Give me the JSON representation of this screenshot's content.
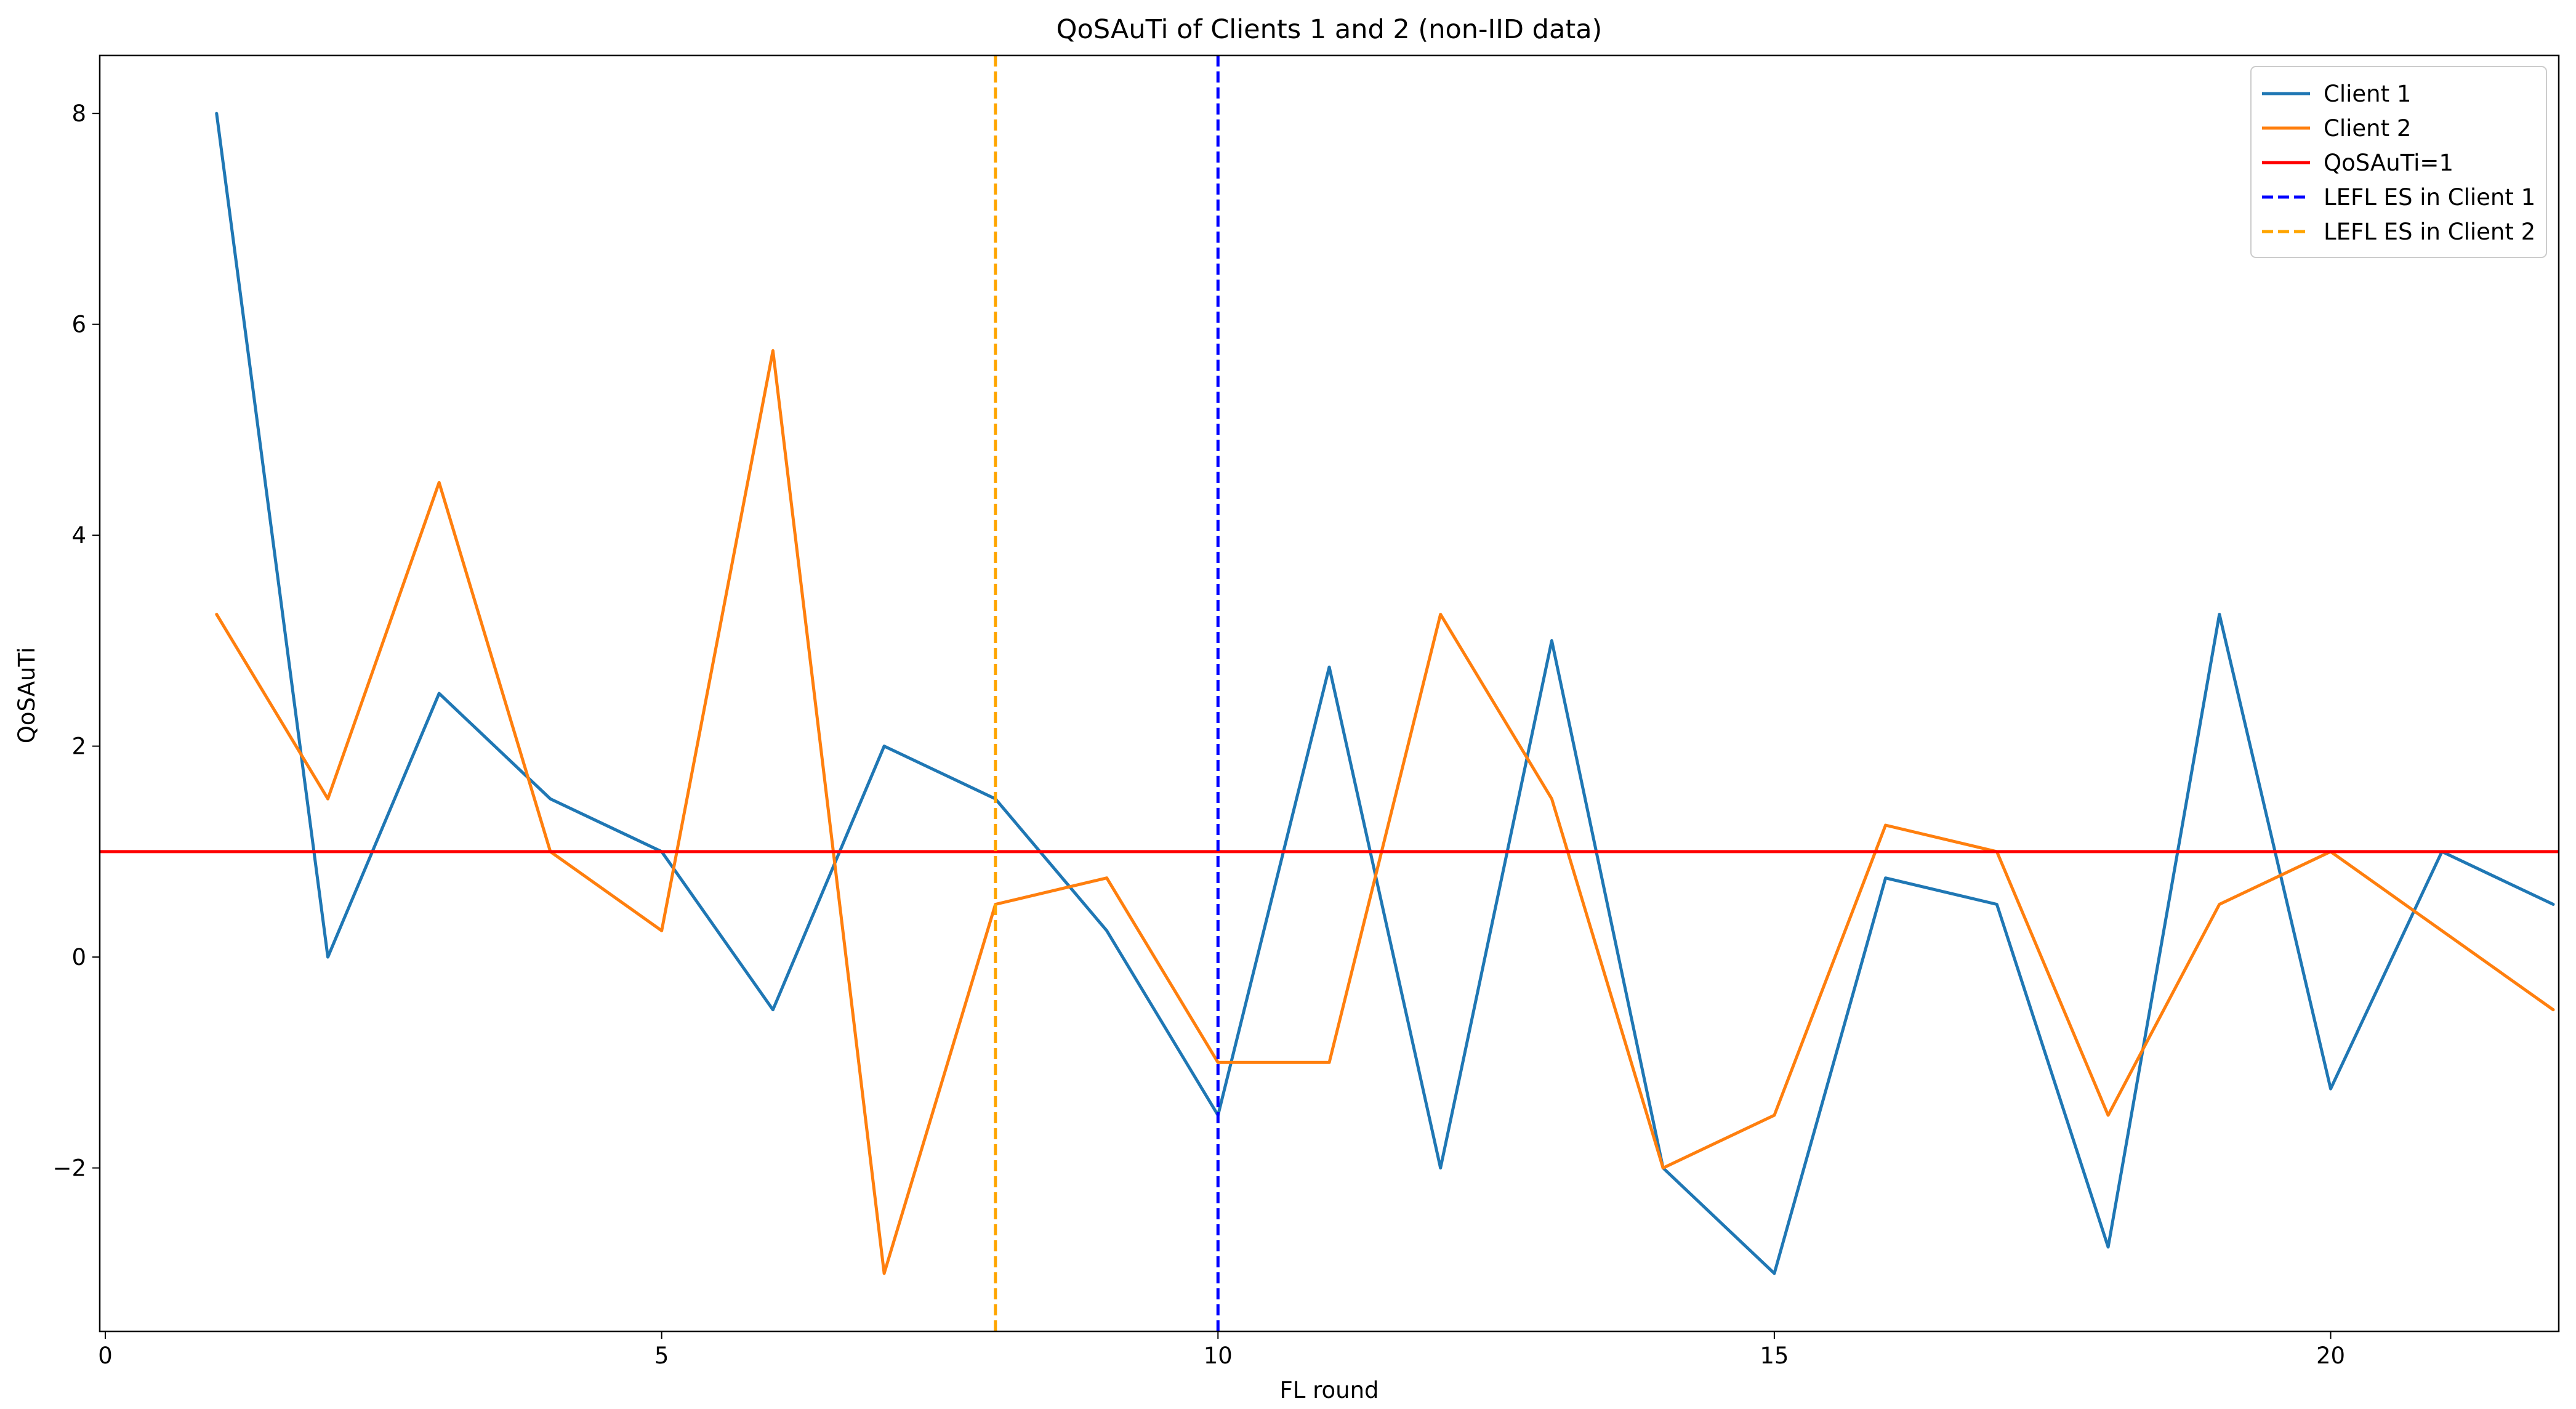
{
  "chart_data": {
    "type": "line",
    "title": "QoSAuTi of Clients 1 and 2 (non-IID data)",
    "xlabel": "FL round",
    "ylabel": "QoSAuTi",
    "xlim": [
      -0.05,
      22.05
    ],
    "ylim": [
      -3.55,
      8.55
    ],
    "xticks": [
      0,
      5,
      10,
      15,
      20
    ],
    "xtick_labels": [
      "0",
      "5",
      "10",
      "15",
      "20"
    ],
    "yticks": [
      -2,
      0,
      2,
      4,
      6,
      8
    ],
    "ytick_labels": [
      "−2",
      "0",
      "2",
      "4",
      "6",
      "8"
    ],
    "grid": false,
    "legend_position": "top-right",
    "x": [
      1,
      2,
      3,
      4,
      5,
      6,
      7,
      8,
      9,
      10,
      11,
      12,
      13,
      14,
      15,
      16,
      17,
      18,
      19,
      20,
      21,
      22
    ],
    "series": [
      {
        "name": "Client 1",
        "color": "#1f77b4",
        "style": "solid",
        "values": [
          8,
          0,
          2.5,
          1.5,
          1,
          -0.5,
          2,
          1.5,
          0.25,
          -1.5,
          2.75,
          -2,
          3,
          -2,
          -3,
          0.75,
          0.5,
          -2.75,
          3.25,
          -1.25,
          1,
          0.5
        ]
      },
      {
        "name": "Client 2",
        "color": "#ff7f0e",
        "style": "solid",
        "values": [
          3.25,
          1.5,
          4.5,
          1,
          0.25,
          5.75,
          -3,
          0.5,
          0.75,
          -1,
          -1,
          3.25,
          1.5,
          -2,
          -1.5,
          1.25,
          1,
          -1.5,
          0.5,
          1,
          0.25,
          -0.5
        ]
      }
    ],
    "reference_lines": [
      {
        "name": "QoSAuTi=1",
        "orientation": "horizontal",
        "value": 1,
        "color": "#ff0000",
        "style": "solid"
      },
      {
        "name": "LEFL ES in Client 1",
        "orientation": "vertical",
        "value": 10,
        "color": "#0000ff",
        "style": "dashed"
      },
      {
        "name": "LEFL ES in Client 2",
        "orientation": "vertical",
        "value": 8,
        "color": "#ffa500",
        "style": "dashed"
      }
    ],
    "legend": [
      {
        "label": "Client 1",
        "color": "#1f77b4",
        "style": "solid"
      },
      {
        "label": "Client 2",
        "color": "#ff7f0e",
        "style": "solid"
      },
      {
        "label": "QoSAuTi=1",
        "color": "#ff0000",
        "style": "solid"
      },
      {
        "label": "LEFL ES in Client 1",
        "color": "#0000ff",
        "style": "dashed"
      },
      {
        "label": "LEFL ES in Client 2",
        "color": "#ffa500",
        "style": "dashed"
      }
    ]
  }
}
